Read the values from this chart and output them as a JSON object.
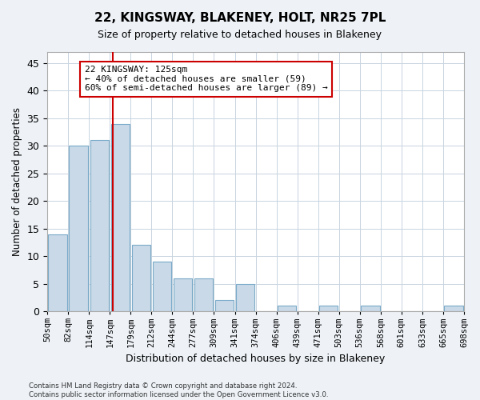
{
  "title": "22, KINGSWAY, BLAKENEY, HOLT, NR25 7PL",
  "subtitle": "Size of property relative to detached houses in Blakeney",
  "xlabel": "Distribution of detached houses by size in Blakeney",
  "ylabel": "Number of detached properties",
  "bin_labels": [
    "50sqm",
    "82sqm",
    "114sqm",
    "147sqm",
    "179sqm",
    "212sqm",
    "244sqm",
    "277sqm",
    "309sqm",
    "341sqm",
    "374sqm",
    "406sqm",
    "439sqm",
    "471sqm",
    "503sqm",
    "536sqm",
    "568sqm",
    "601sqm",
    "633sqm",
    "665sqm",
    "698sqm"
  ],
  "bar_values": [
    14,
    30,
    31,
    34,
    12,
    9,
    6,
    6,
    2,
    5,
    0,
    1,
    0,
    1,
    0,
    1,
    0,
    0,
    0,
    1
  ],
  "bar_color": "#c9d9e8",
  "bar_edge_color": "#7aaac8",
  "vline_x": 2.65,
  "vline_color": "#cc0000",
  "annotation_text": "22 KINGSWAY: 125sqm\n← 40% of detached houses are smaller (59)\n60% of semi-detached houses are larger (89) →",
  "annotation_box_color": "#cc0000",
  "ylim": [
    0,
    47
  ],
  "yticks": [
    0,
    5,
    10,
    15,
    20,
    25,
    30,
    35,
    40,
    45
  ],
  "footnote": "Contains HM Land Registry data © Crown copyright and database right 2024.\nContains public sector information licensed under the Open Government Licence v3.0.",
  "bg_color": "#eef2f7",
  "plot_bg_color": "#ffffff",
  "grid_color": "#c8d4e0"
}
